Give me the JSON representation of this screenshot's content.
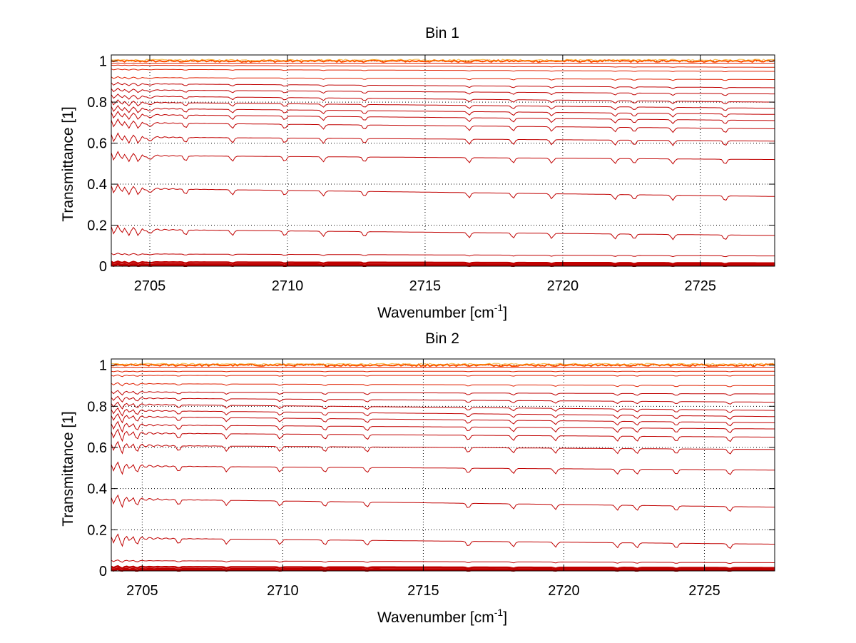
{
  "colors": {
    "background": "#ffffff",
    "axes": "#000000",
    "grid": "#000000",
    "trace_dark": "#c00000",
    "trace_mid": "#e02000",
    "trace_bright": "#ff5000",
    "trace_top_accent": "#f0a000"
  },
  "chart_data": [
    {
      "type": "line",
      "title": "Bin 1",
      "xlabel": "Wavenumber [cm",
      "xlabel_sup": "-1",
      "xlabel_end": "]",
      "ylabel": "Transmittance [1]",
      "xlim": [
        2703.6,
        2727.7
      ],
      "ylim": [
        0,
        1.03
      ],
      "xticks": [
        2705,
        2710,
        2715,
        2720,
        2725
      ],
      "xtick_labels": [
        "2705",
        "2710",
        "2715",
        "2720",
        "2725"
      ],
      "yticks": [
        0,
        0.2,
        0.4,
        0.6,
        0.8,
        1
      ],
      "ytick_labels": [
        "0",
        "0.2",
        "0.4",
        "0.6",
        "0.8",
        "1"
      ],
      "grid": true,
      "series_levels_start": [
        1.0,
        0.99,
        0.98,
        0.96,
        0.92,
        0.89,
        0.86,
        0.83,
        0.8,
        0.77,
        0.74,
        0.7,
        0.63,
        0.54,
        0.38,
        0.18,
        0.06,
        0.02,
        0.01,
        0.005
      ],
      "series_levels_end": [
        1.0,
        0.99,
        0.97,
        0.95,
        0.91,
        0.87,
        0.84,
        0.8,
        0.77,
        0.74,
        0.71,
        0.67,
        0.61,
        0.52,
        0.34,
        0.15,
        0.05,
        0.015,
        0.008,
        0.004
      ],
      "absorption_lines": [
        2704.2,
        2704.6,
        2705.0,
        2706.3,
        2708.0,
        2709.9,
        2711.3,
        2712.8,
        2716.6,
        2718.2,
        2719.6,
        2721.9,
        2722.6,
        2724.0,
        2725.9
      ]
    },
    {
      "type": "line",
      "title": "Bin 2",
      "xlabel": "Wavenumber [cm",
      "xlabel_sup": "-1",
      "xlabel_end": "]",
      "ylabel": "Transmittance [1]",
      "xlim": [
        2703.9,
        2727.5
      ],
      "ylim": [
        0,
        1.03
      ],
      "xticks": [
        2705,
        2710,
        2715,
        2720,
        2725
      ],
      "xtick_labels": [
        "2705",
        "2710",
        "2715",
        "2720",
        "2725"
      ],
      "yticks": [
        0,
        0.2,
        0.4,
        0.6,
        0.8,
        1
      ],
      "ytick_labels": [
        "0",
        "0.2",
        "0.4",
        "0.6",
        "0.8",
        "1"
      ],
      "grid": true,
      "series_levels_start": [
        1.0,
        0.99,
        0.97,
        0.95,
        0.91,
        0.87,
        0.84,
        0.81,
        0.78,
        0.75,
        0.71,
        0.67,
        0.61,
        0.51,
        0.35,
        0.16,
        0.05,
        0.02,
        0.01,
        0.005
      ],
      "series_levels_end": [
        1.0,
        0.99,
        0.97,
        0.95,
        0.9,
        0.86,
        0.82,
        0.78,
        0.75,
        0.72,
        0.69,
        0.65,
        0.59,
        0.49,
        0.31,
        0.13,
        0.04,
        0.015,
        0.008,
        0.004
      ],
      "absorption_lines": [
        2704.3,
        2704.8,
        2706.3,
        2708.0,
        2709.9,
        2711.5,
        2713.0,
        2716.6,
        2718.2,
        2719.7,
        2721.9,
        2722.6,
        2724.0,
        2725.9
      ]
    }
  ]
}
